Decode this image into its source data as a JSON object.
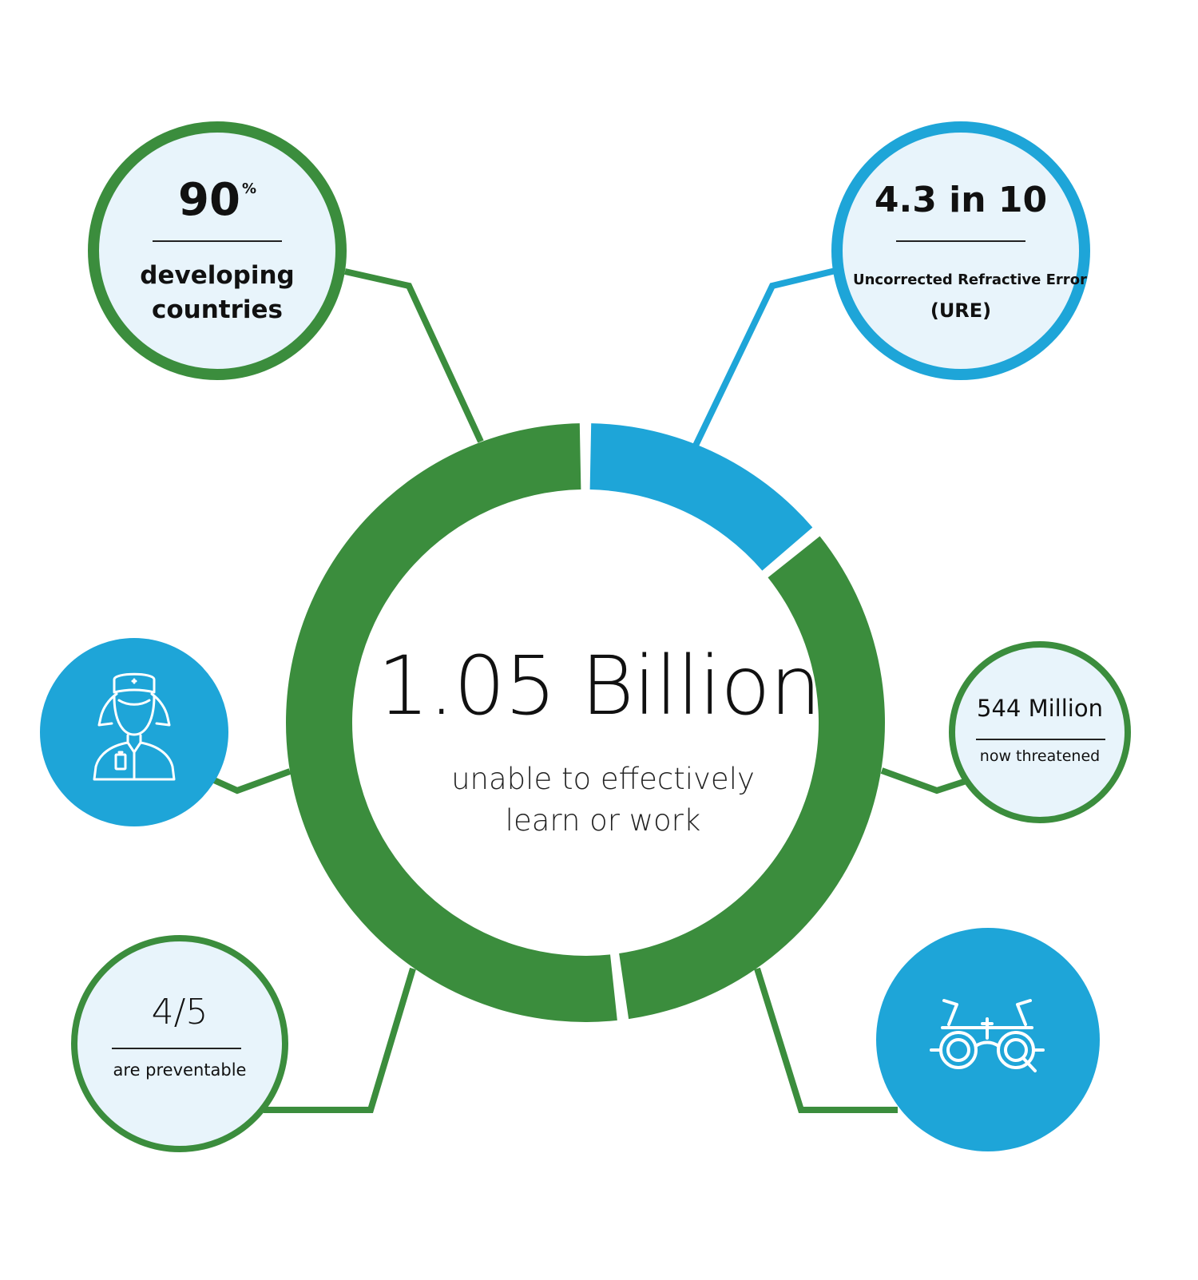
{
  "palette": {
    "green": "#3b8d3d",
    "blue": "#1ea5d8",
    "bubble_fill": "#e8f4fb",
    "white": "#ffffff",
    "text": "#111111"
  },
  "center": {
    "value": "1.05 Billion",
    "caption_line1": "unable to effectively",
    "caption_line2": "learn or work"
  },
  "ring_segments": [
    {
      "color": "blue",
      "share": 0.14
    },
    {
      "color": "green",
      "share": 0.34
    },
    {
      "color": "green",
      "share": 0.52
    }
  ],
  "stats": {
    "developing": {
      "value": "90",
      "unit": "%",
      "line1": "developing",
      "line2": "countries"
    },
    "ure": {
      "value": "4.3 in 10",
      "line1": "Uncorrected Refractive Error",
      "line2": "(URE)"
    },
    "threatened": {
      "value": "544 Million",
      "line1": "now threatened"
    },
    "preventable": {
      "value": "4/5",
      "line1": "are preventable"
    }
  },
  "icons": {
    "nurse": "nurse-icon",
    "eyewear": "trial-frame-glasses-icon"
  }
}
